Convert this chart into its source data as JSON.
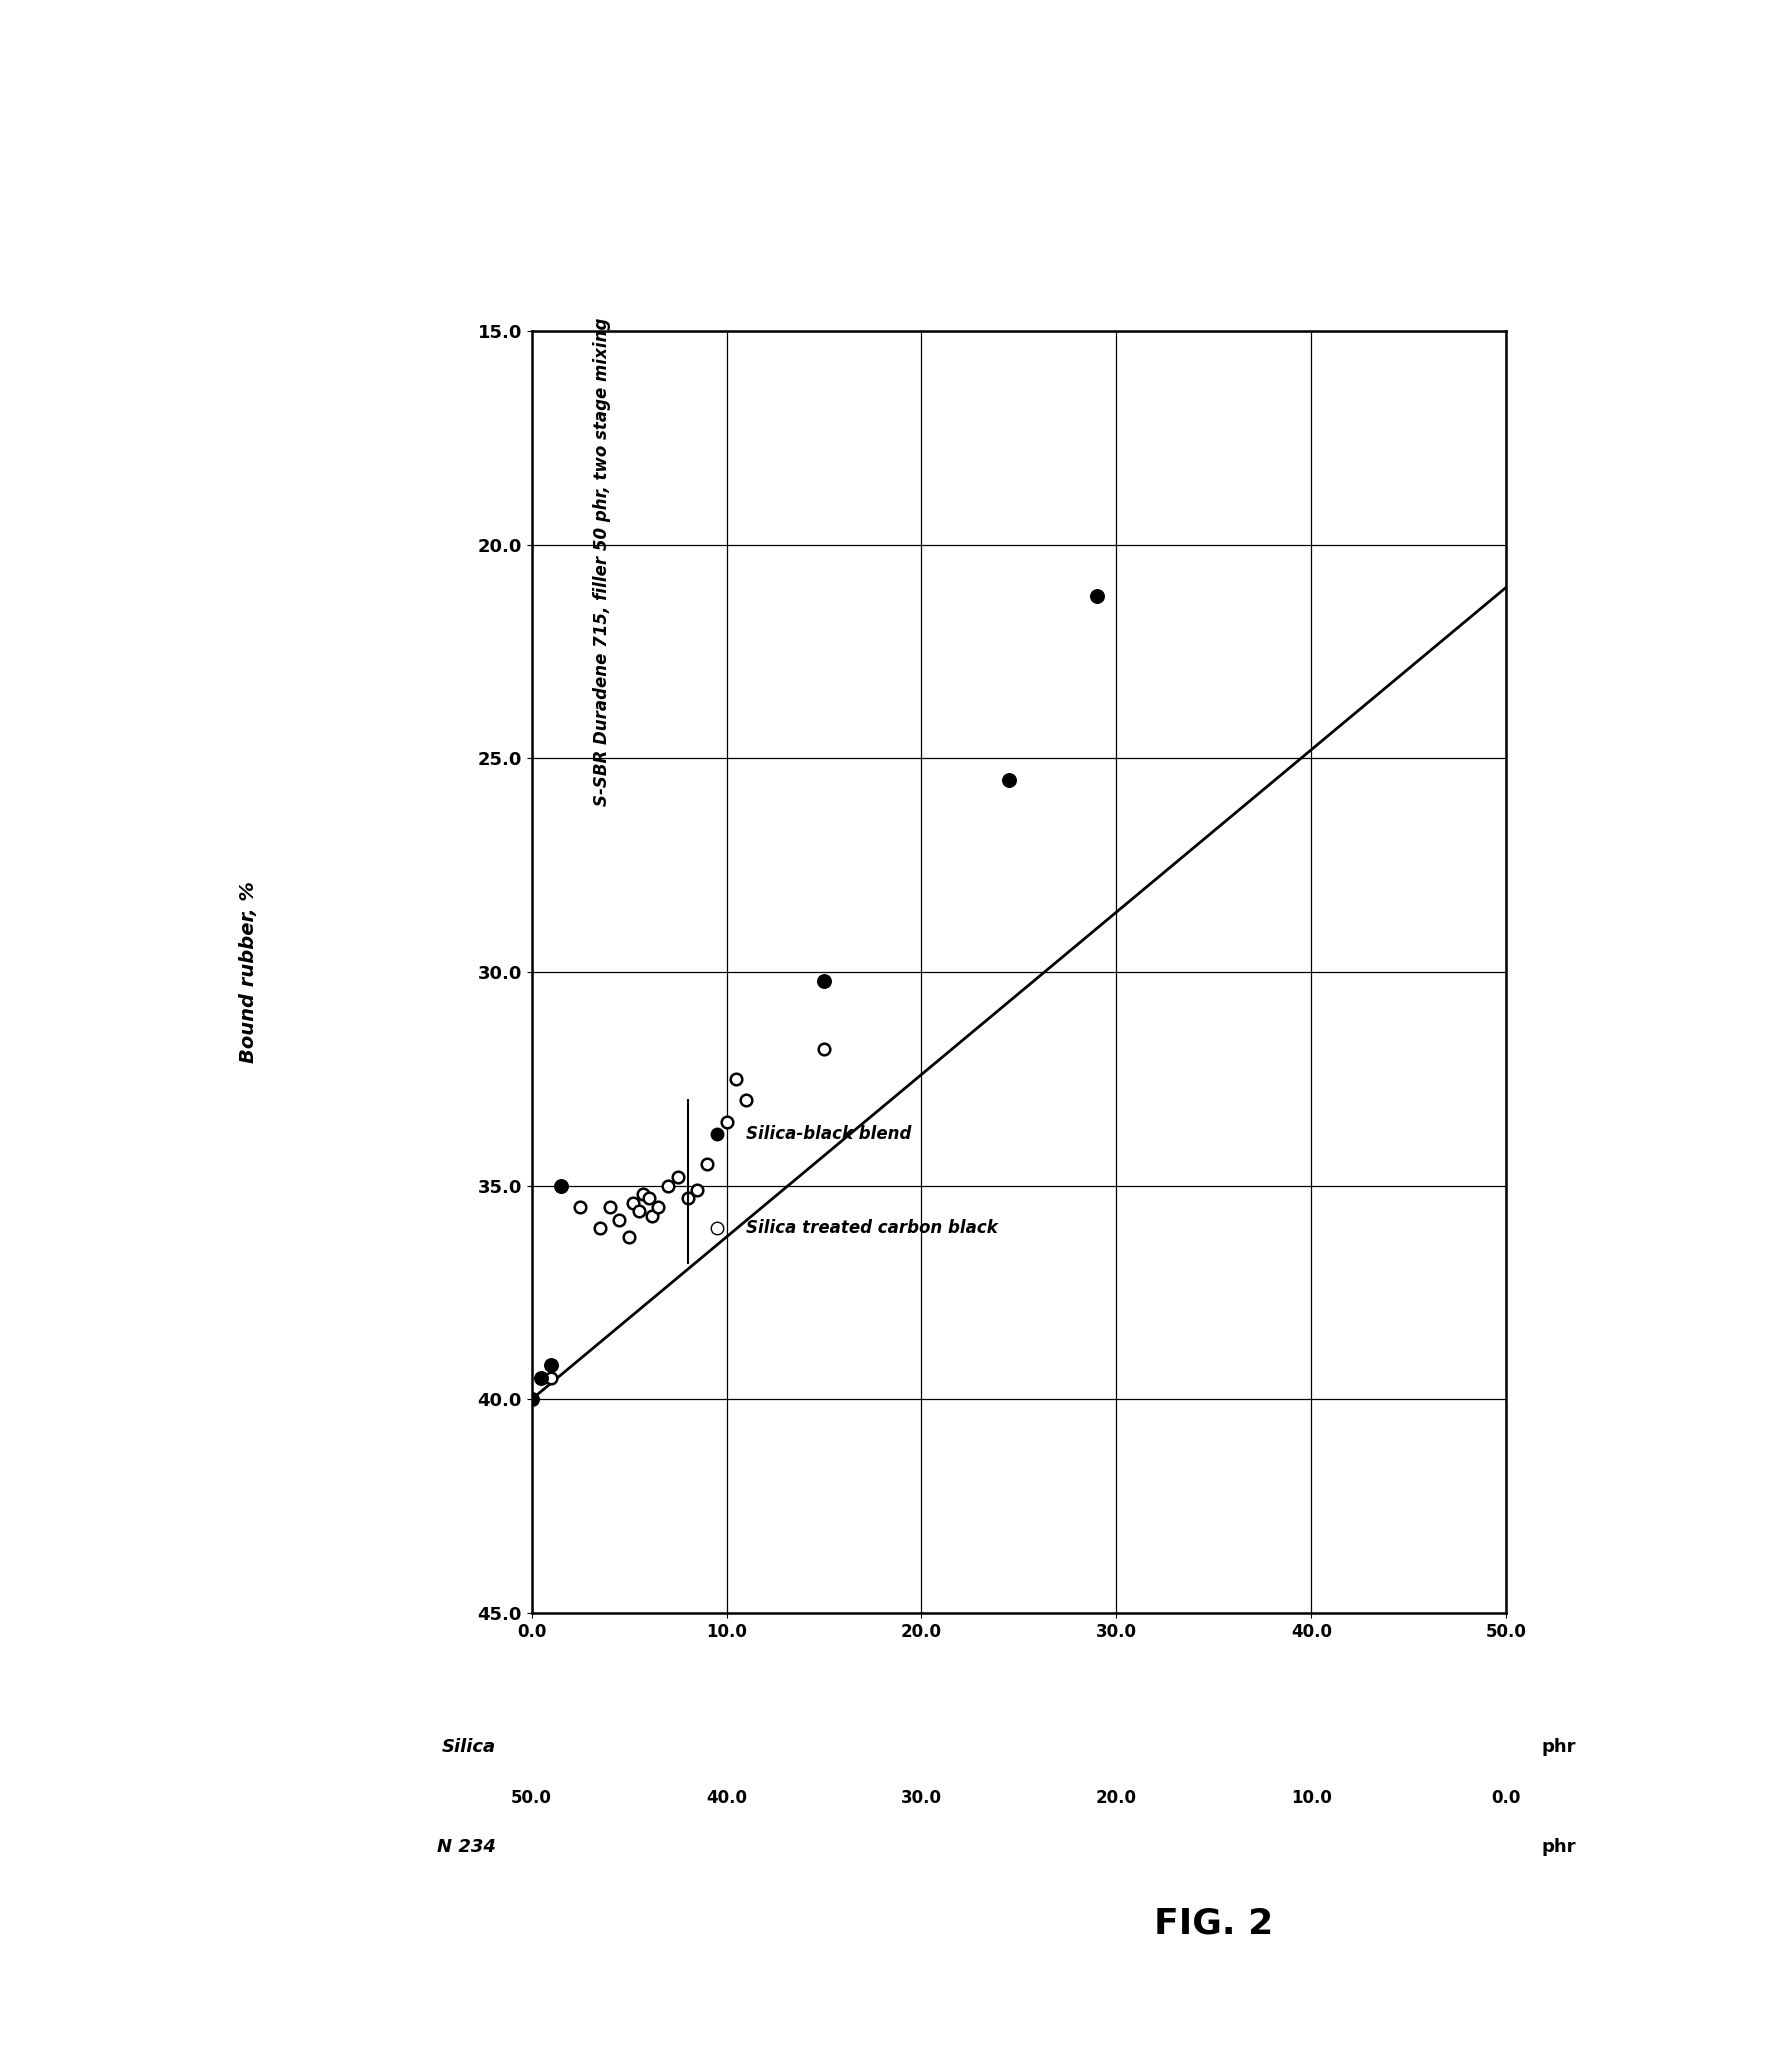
{
  "title_annotation": "S-SBR Duradene 715, filler 50 phr, two stage mixing",
  "ylabel_label": "Bound rubber, %",
  "xlabel_silica": "Silica",
  "xlabel_n234": "N 234",
  "phr_label": "phr",
  "fig_label": "FIG. 2",
  "y_ticks": [
    45.0,
    40.0,
    35.0,
    30.0,
    25.0,
    20.0,
    15.0
  ],
  "x_ticks_silica": [
    0.0,
    10.0,
    20.0,
    30.0,
    40.0,
    50.0
  ],
  "x_ticks_n234": [
    50.0,
    40.0,
    30.0,
    20.0,
    10.0,
    0.0
  ],
  "x_tick_positions": [
    0.0,
    10.0,
    20.0,
    30.0,
    40.0,
    50.0
  ],
  "open_x": [
    1.0,
    2.5,
    3.5,
    4.0,
    4.5,
    5.0,
    5.2,
    5.5,
    5.7,
    6.0,
    6.2,
    6.5,
    7.0,
    7.5,
    8.0,
    8.5,
    9.0,
    10.0,
    10.5,
    11.0,
    15.0
  ],
  "open_y": [
    39.5,
    35.5,
    36.0,
    35.5,
    35.8,
    36.2,
    35.4,
    35.6,
    35.2,
    35.3,
    35.7,
    35.5,
    35.0,
    34.8,
    35.3,
    35.1,
    34.5,
    33.5,
    32.5,
    33.0,
    31.8
  ],
  "filled_x": [
    0.0,
    0.5,
    1.0,
    1.5,
    15.0,
    24.5,
    29.0
  ],
  "filled_y": [
    40.0,
    39.5,
    39.2,
    35.0,
    30.2,
    25.5,
    21.2
  ],
  "line_x": [
    0.0,
    50.0
  ],
  "line_y": [
    40.0,
    21.0
  ],
  "ylim_top": 45.0,
  "ylim_bottom": 15.0,
  "xlim_left": 0.0,
  "xlim_right": 50.0,
  "bg_color": "#ffffff"
}
